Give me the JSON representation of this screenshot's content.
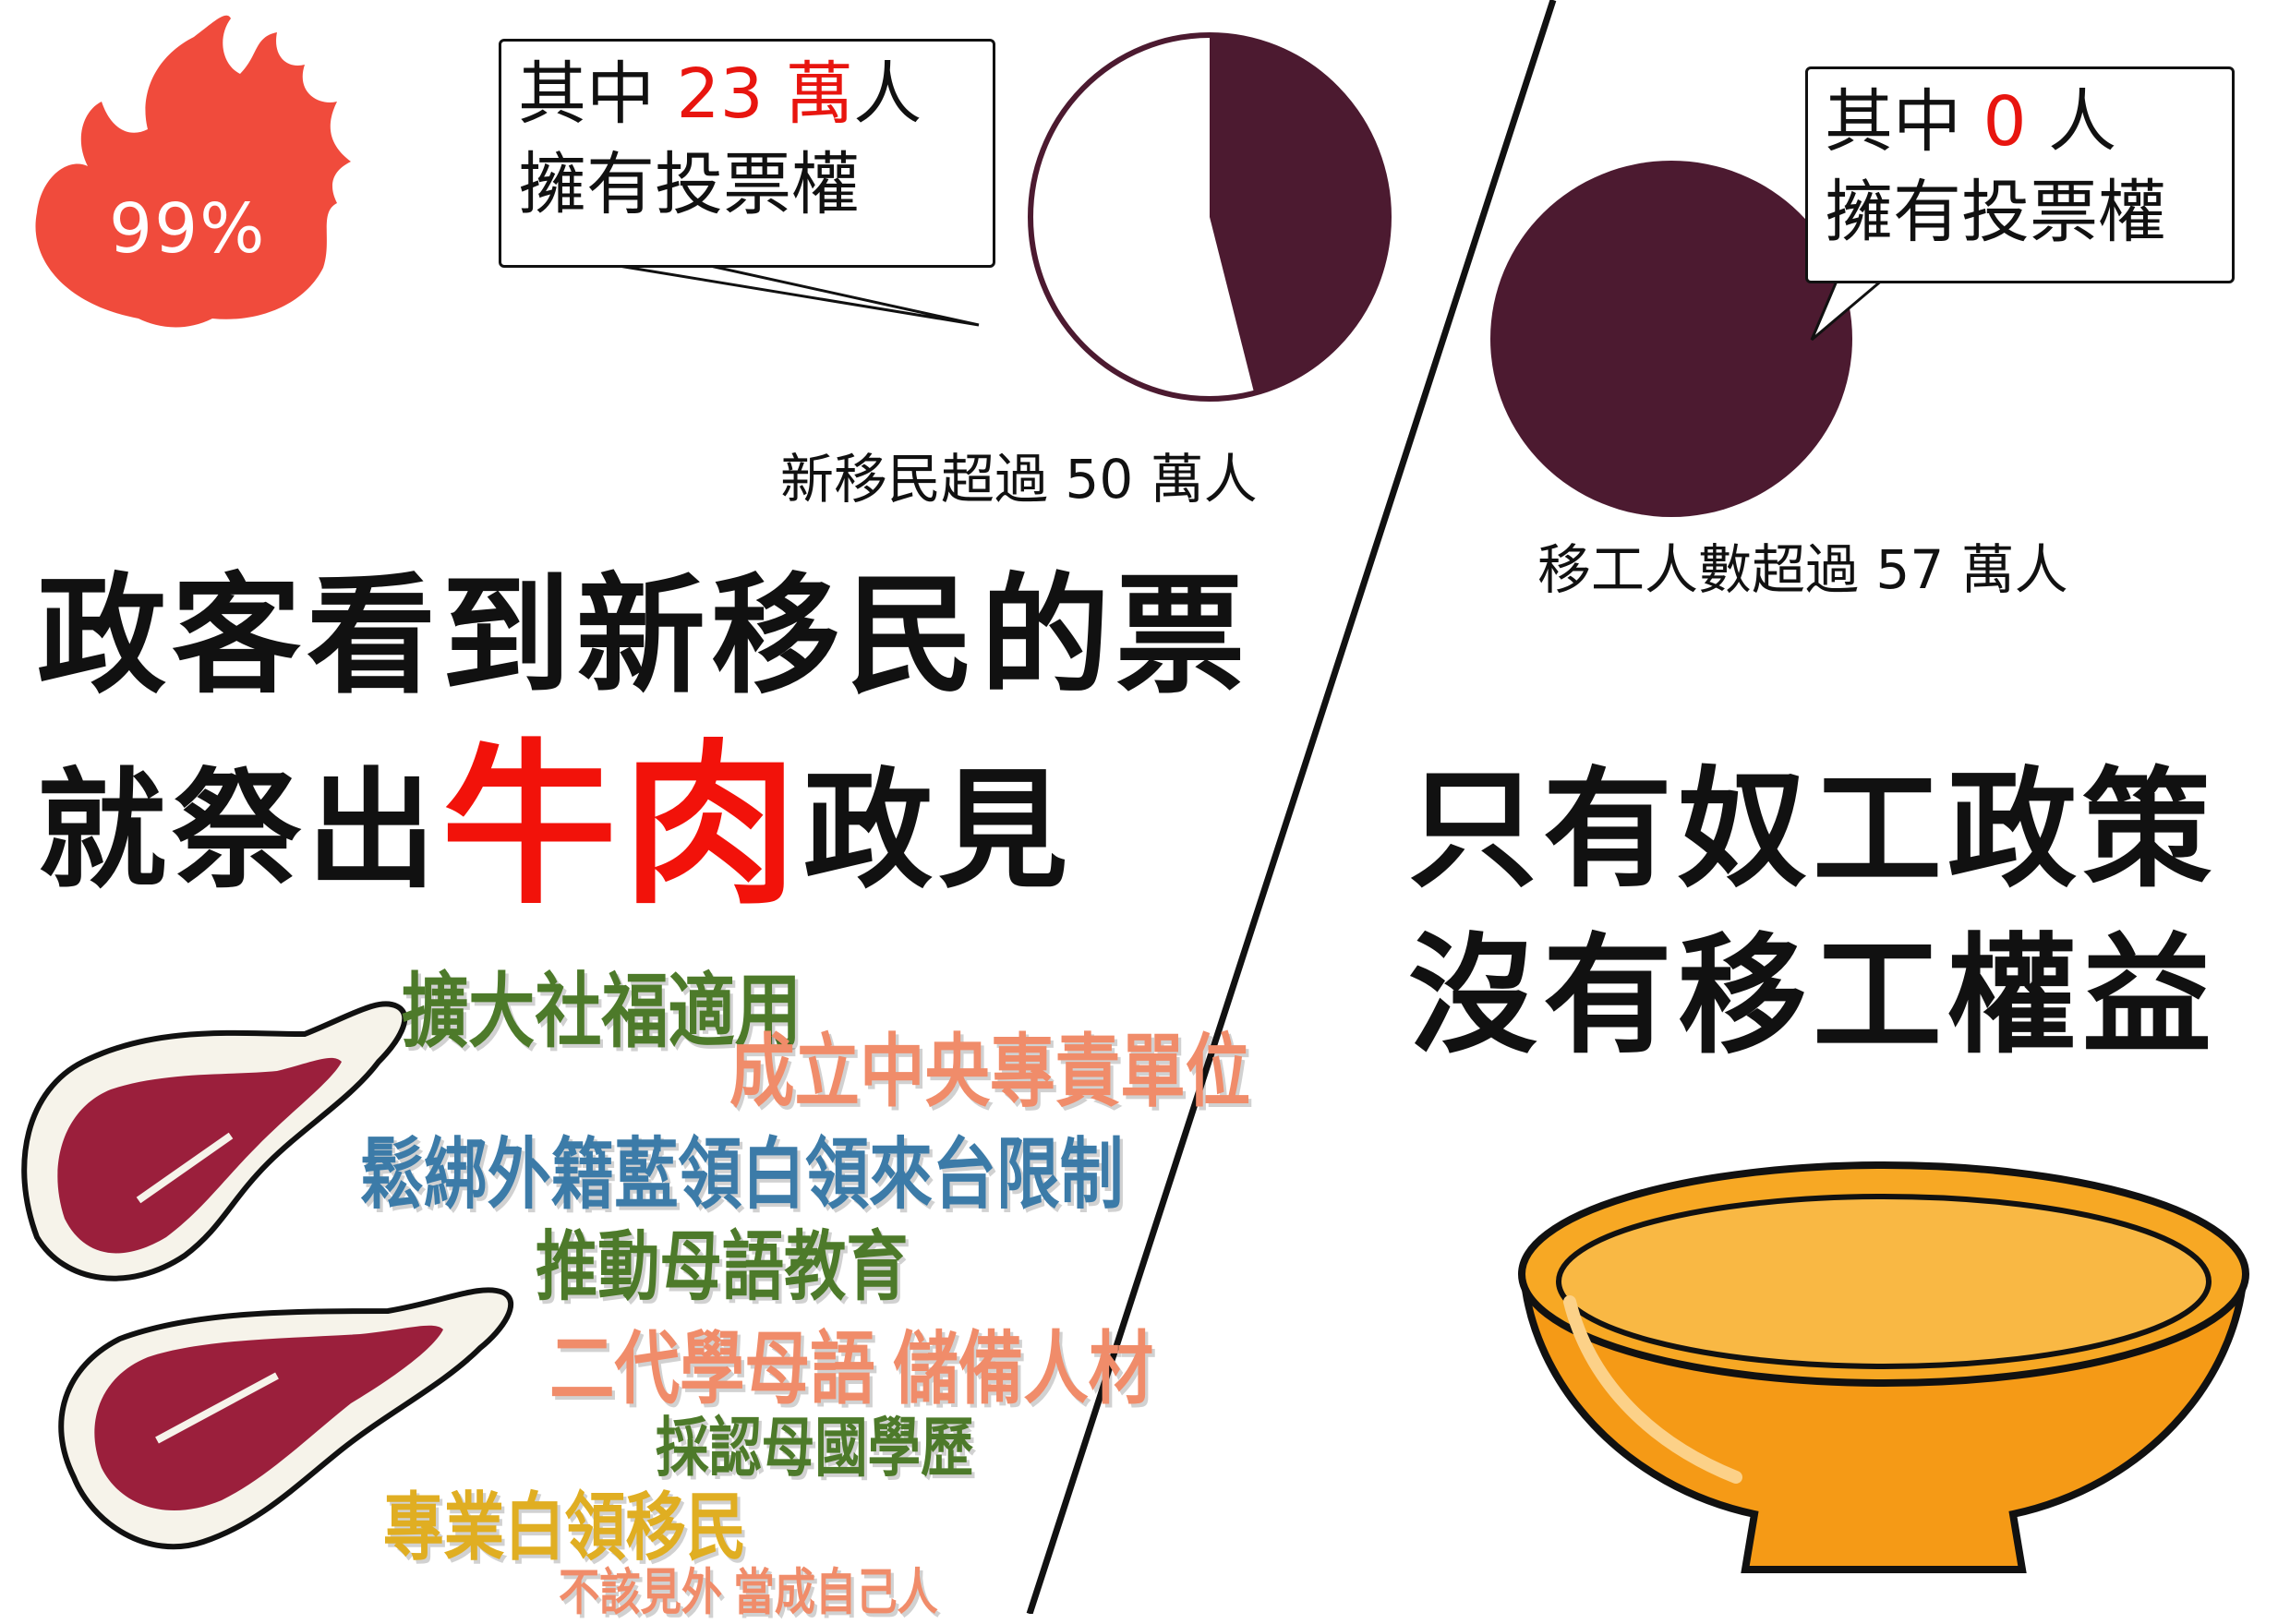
{
  "flame": {
    "percent": "99%",
    "color": "#f04b3c"
  },
  "left_callout": {
    "prefix": "其中 ",
    "number": "23 萬",
    "suffix": "人",
    "line2": "擁有投票權"
  },
  "left_pie": {
    "caption": "新移民超過 50 萬人",
    "total": 50,
    "voting": 23,
    "fill_color": "#4c1a30"
  },
  "right_callout": {
    "prefix": "其中 ",
    "number": "0",
    "suffix": " 人",
    "line2": "擁有投票權"
  },
  "right_pie": {
    "caption": "移工人數超過 57 萬人",
    "total": 57,
    "voting": 0,
    "fill_color": "#4c1a30"
  },
  "left_headline": {
    "line1": "政客看到新移民的票",
    "line2_prefix": "就祭出",
    "line2_highlight": "牛肉",
    "line2_suffix": "政見"
  },
  "right_headline": {
    "line1": "只有奴工政策",
    "line2": "沒有移工權益"
  },
  "policies": [
    "擴大社福適用",
    "成立中央專責單位",
    "鬆綁外籍藍領白領來台限制",
    "推動母語教育",
    "二代學母語 儲備人材",
    "採認母國學歷",
    "專業白領移民",
    "不該見外 當成自己人"
  ],
  "colors": {
    "accent_red": "#e8150f",
    "bowl_orange": "#f59a16",
    "meat": "#9b1f3c"
  },
  "icons": {
    "left_illustration": "steak-icon",
    "right_illustration": "empty-bowl-icon",
    "badge": "flame-icon"
  }
}
